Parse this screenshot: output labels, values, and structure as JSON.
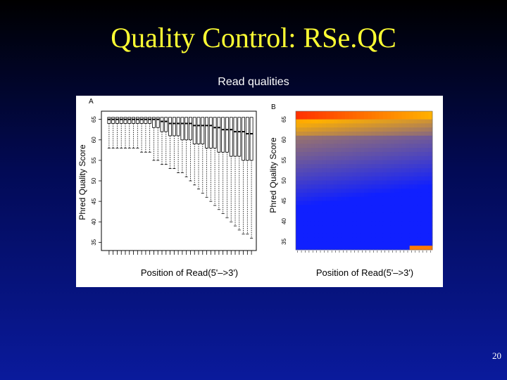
{
  "slide": {
    "title": "Quality Control: RSe.QC",
    "subtitle": "Read qualities",
    "page_number": "20"
  },
  "chart_data": [
    {
      "type": "box",
      "panel_label": "A",
      "xlabel": "Position of Read(5'–>3')",
      "ylabel": "Phred Quality Score",
      "ylim": [
        33,
        67
      ],
      "yticks": [
        35,
        40,
        45,
        50,
        55,
        60,
        65
      ],
      "n_positions": 36,
      "medians": [
        65,
        65,
        65,
        65,
        65,
        65,
        65,
        65,
        65,
        65,
        65,
        65,
        65,
        64.5,
        64.5,
        64,
        64,
        64,
        64,
        64,
        64,
        63.5,
        63.5,
        63.5,
        63.5,
        63.5,
        63,
        63,
        62.5,
        62.5,
        62.5,
        62,
        62,
        62,
        61.5,
        61.5
      ],
      "q1": [
        64,
        64,
        64,
        64,
        64,
        64,
        64,
        64,
        64,
        64,
        64,
        63,
        63,
        62,
        62,
        61,
        61,
        61,
        60,
        60,
        60,
        59,
        59,
        59,
        58,
        58,
        58,
        57,
        57,
        57,
        56,
        56,
        56,
        55,
        55,
        55
      ],
      "q3": [
        65.5,
        65.5,
        65.5,
        65.5,
        65.5,
        65.5,
        65.5,
        65.5,
        65.5,
        65.5,
        65.5,
        65.5,
        65.5,
        65.5,
        65.5,
        65.5,
        65.5,
        65.5,
        65.5,
        65.5,
        65.5,
        65.5,
        65.5,
        65.5,
        65.5,
        65.5,
        65.5,
        65.5,
        65.5,
        65.5,
        65.5,
        65.5,
        65.5,
        65.5,
        65.5,
        65.5
      ],
      "lower_whisker": [
        58,
        58,
        58,
        58,
        58,
        58,
        58,
        58,
        57,
        57,
        57,
        55,
        55,
        54,
        54,
        53,
        53,
        52,
        52,
        51,
        50,
        49,
        48,
        47,
        46,
        45,
        44,
        43,
        42,
        41,
        40,
        39,
        38,
        37,
        37,
        36
      ]
    },
    {
      "type": "heatmap",
      "panel_label": "B",
      "xlabel": "Position of Read(5'–>3')",
      "ylabel": "Phred Quality Score",
      "ylim": [
        33,
        67
      ],
      "yticks": [
        35,
        40,
        45,
        50,
        55,
        60,
        65
      ],
      "n_positions": 36,
      "colormap": [
        "#1020ff",
        "#ffb000",
        "#ff2000"
      ]
    }
  ]
}
